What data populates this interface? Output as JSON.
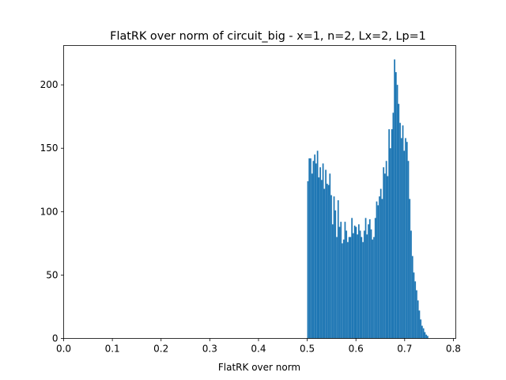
{
  "chart_data": {
    "type": "bar",
    "title": "FlatRK over norm of circuit_big - x=1, n=2, Lx=2, Lp=1",
    "xlabel": "FlatRK over norm",
    "ylabel": "",
    "xlim": [
      0.0,
      0.805
    ],
    "ylim": [
      0,
      231
    ],
    "xticks": [
      {
        "value": 0.0,
        "label": "0.0"
      },
      {
        "value": 0.1,
        "label": "0.1"
      },
      {
        "value": 0.2,
        "label": "0.2"
      },
      {
        "value": 0.3,
        "label": "0.3"
      },
      {
        "value": 0.4,
        "label": "0.4"
      },
      {
        "value": 0.5,
        "label": "0.5"
      },
      {
        "value": 0.6,
        "label": "0.6"
      },
      {
        "value": 0.7,
        "label": "0.7"
      },
      {
        "value": 0.8,
        "label": "0.8"
      }
    ],
    "yticks": [
      {
        "value": 0,
        "label": "0"
      },
      {
        "value": 50,
        "label": "50"
      },
      {
        "value": 100,
        "label": "100"
      },
      {
        "value": 150,
        "label": "150"
      },
      {
        "value": 200,
        "label": "200"
      }
    ],
    "bar_color": "#1f77b4",
    "bin_start": 0.5,
    "bin_width": 0.002825,
    "counts": [
      124,
      142,
      142,
      130,
      140,
      145,
      138,
      148,
      127,
      135,
      125,
      138,
      118,
      133,
      122,
      121,
      130,
      113,
      90,
      112,
      101,
      80,
      109,
      88,
      92,
      75,
      78,
      92,
      85,
      76,
      80,
      80,
      95,
      83,
      89,
      88,
      82,
      90,
      85,
      80,
      76,
      85,
      95,
      82,
      90,
      94,
      86,
      78,
      80,
      95,
      108,
      105,
      112,
      118,
      110,
      135,
      130,
      140,
      128,
      165,
      150,
      165,
      178,
      220,
      210,
      200,
      185,
      170,
      158,
      168,
      148,
      158,
      155,
      140,
      110,
      85,
      65,
      52,
      45,
      38,
      30,
      22,
      15,
      10,
      8,
      5,
      3,
      2
    ]
  }
}
